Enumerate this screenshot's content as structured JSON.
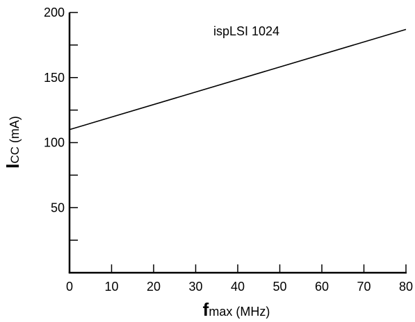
{
  "chart_data": {
    "type": "line",
    "annotation": "ispLSI 1024",
    "xlabel": {
      "symbol": "f",
      "subscript": "max",
      "unit": " (MHz)"
    },
    "ylabel": {
      "symbol": "I",
      "subscript": "CC",
      "unit": " (mA)"
    },
    "xlim": [
      0,
      80
    ],
    "ylim": [
      0,
      200
    ],
    "x_ticks": [
      0,
      10,
      20,
      30,
      40,
      50,
      60,
      70,
      80
    ],
    "y_ticks": [
      0,
      25,
      50,
      75,
      100,
      125,
      150,
      175,
      200
    ],
    "y_tick_labels": [
      "",
      "",
      "50",
      "",
      "100",
      "",
      "150",
      "",
      "200"
    ],
    "x_tick_labels": [
      "0",
      "10",
      "20",
      "30",
      "40",
      "50",
      "60",
      "70",
      "80"
    ],
    "grid": false,
    "series": [
      {
        "x": [
          0,
          80
        ],
        "y": [
          110,
          187
        ]
      }
    ]
  }
}
